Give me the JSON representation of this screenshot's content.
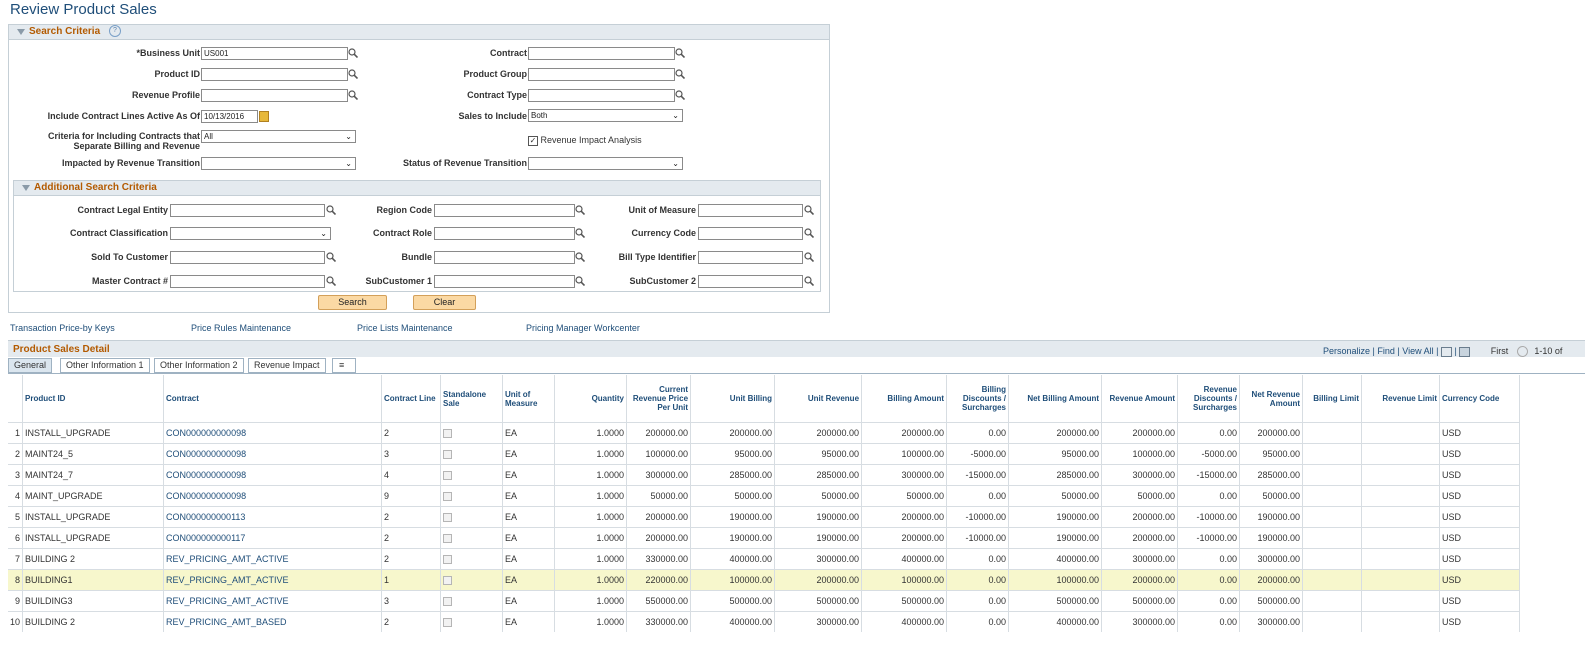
{
  "page": {
    "title": "Review Product Sales"
  },
  "search": {
    "header": "Search Criteria",
    "help_icon": "?",
    "business_unit_label": "*Business Unit",
    "business_unit_value": "US001",
    "product_id_label": "Product ID",
    "revenue_profile_label": "Revenue Profile",
    "active_as_of_label": "Include Contract Lines Active As Of",
    "active_as_of_value": "10/13/2016",
    "criteria_label_1": "Criteria for Including Contracts that",
    "criteria_label_2": "Separate Billing and Revenue",
    "criteria_value": "All",
    "impacted_label": "Impacted by Revenue Transition",
    "impacted_value": "",
    "contract_label": "Contract",
    "product_group_label": "Product Group",
    "contract_type_label": "Contract Type",
    "sales_include_label": "Sales to Include",
    "sales_include_value": "Both",
    "revenue_impact_label": "Revenue Impact Analysis",
    "revenue_impact_checked": true,
    "status_label": "Status of Revenue Transition",
    "status_value": ""
  },
  "additional": {
    "header": "Additional Search Criteria",
    "legal_entity_label": "Contract Legal Entity",
    "classification_label": "Contract Classification",
    "sold_to_label": "Sold To Customer",
    "master_contract_label": "Master Contract #",
    "region_label": "Region Code",
    "contract_role_label": "Contract Role",
    "bundle_label": "Bundle",
    "subcustomer1_label": "SubCustomer 1",
    "uom_label": "Unit of Measure",
    "currency_label": "Currency Code",
    "bill_type_label": "Bill Type Identifier",
    "subcustomer2_label": "SubCustomer 2"
  },
  "buttons": {
    "search": "Search",
    "clear": "Clear"
  },
  "links": {
    "price_by_keys": "Transaction Price-by Keys",
    "price_rules": "Price Rules Maintenance",
    "price_lists": "Price Lists Maintenance",
    "pricing_manager": "Pricing Manager Workcenter"
  },
  "grid": {
    "title": "Product Sales Detail",
    "personalize": "Personalize",
    "find": "Find",
    "view_all": "View All",
    "first": "First",
    "range": "1-10 of",
    "tabs": [
      "General",
      "Other Information 1",
      "Other Information 2",
      "Revenue Impact"
    ],
    "columns": [
      "Product ID",
      "Contract",
      "Contract Line",
      "Standalone Sale",
      "Unit of Measure",
      "Quantity",
      "Current Revenue Price Per Unit",
      "Unit Billing",
      "Unit Revenue",
      "Billing Amount",
      "Billing Discounts / Surcharges",
      "Net Billing Amount",
      "Revenue Amount",
      "Revenue Discounts / Surcharges",
      "Net Revenue Amount",
      "Billing Limit",
      "Revenue Limit",
      "Currency Code"
    ],
    "rows": [
      {
        "n": "1",
        "product": "INSTALL_UPGRADE",
        "contract": "CON000000000098",
        "line": "2",
        "uom": "EA",
        "qty": "1.0000",
        "price": "200000.00",
        "ub": "200000.00",
        "ur": "200000.00",
        "ba": "200000.00",
        "bd": "0.00",
        "nba": "200000.00",
        "ra": "200000.00",
        "rd": "0.00",
        "nra": "200000.00",
        "cur": "USD"
      },
      {
        "n": "2",
        "product": "MAINT24_5",
        "contract": "CON000000000098",
        "line": "3",
        "uom": "EA",
        "qty": "1.0000",
        "price": "100000.00",
        "ub": "95000.00",
        "ur": "95000.00",
        "ba": "100000.00",
        "bd": "-5000.00",
        "nba": "95000.00",
        "ra": "100000.00",
        "rd": "-5000.00",
        "nra": "95000.00",
        "cur": "USD"
      },
      {
        "n": "3",
        "product": "MAINT24_7",
        "contract": "CON000000000098",
        "line": "4",
        "uom": "EA",
        "qty": "1.0000",
        "price": "300000.00",
        "ub": "285000.00",
        "ur": "285000.00",
        "ba": "300000.00",
        "bd": "-15000.00",
        "nba": "285000.00",
        "ra": "300000.00",
        "rd": "-15000.00",
        "nra": "285000.00",
        "cur": "USD"
      },
      {
        "n": "4",
        "product": "MAINT_UPGRADE",
        "contract": "CON000000000098",
        "line": "9",
        "uom": "EA",
        "qty": "1.0000",
        "price": "50000.00",
        "ub": "50000.00",
        "ur": "50000.00",
        "ba": "50000.00",
        "bd": "0.00",
        "nba": "50000.00",
        "ra": "50000.00",
        "rd": "0.00",
        "nra": "50000.00",
        "cur": "USD"
      },
      {
        "n": "5",
        "product": "INSTALL_UPGRADE",
        "contract": "CON000000000113",
        "line": "2",
        "uom": "EA",
        "qty": "1.0000",
        "price": "200000.00",
        "ub": "190000.00",
        "ur": "190000.00",
        "ba": "200000.00",
        "bd": "-10000.00",
        "nba": "190000.00",
        "ra": "200000.00",
        "rd": "-10000.00",
        "nra": "190000.00",
        "cur": "USD"
      },
      {
        "n": "6",
        "product": "INSTALL_UPGRADE",
        "contract": "CON000000000117",
        "line": "2",
        "uom": "EA",
        "qty": "1.0000",
        "price": "200000.00",
        "ub": "190000.00",
        "ur": "190000.00",
        "ba": "200000.00",
        "bd": "-10000.00",
        "nba": "190000.00",
        "ra": "200000.00",
        "rd": "-10000.00",
        "nra": "190000.00",
        "cur": "USD"
      },
      {
        "n": "7",
        "product": "BUILDING 2",
        "contract": "REV_PRICING_AMT_ACTIVE",
        "line": "2",
        "uom": "EA",
        "qty": "1.0000",
        "price": "330000.00",
        "ub": "400000.00",
        "ur": "300000.00",
        "ba": "400000.00",
        "bd": "0.00",
        "nba": "400000.00",
        "ra": "300000.00",
        "rd": "0.00",
        "nra": "300000.00",
        "cur": "USD"
      },
      {
        "n": "8",
        "product": "BUILDING1",
        "contract": "REV_PRICING_AMT_ACTIVE",
        "line": "1",
        "uom": "EA",
        "qty": "1.0000",
        "price": "220000.00",
        "ub": "100000.00",
        "ur": "200000.00",
        "ba": "100000.00",
        "bd": "0.00",
        "nba": "100000.00",
        "ra": "200000.00",
        "rd": "0.00",
        "nra": "200000.00",
        "cur": "USD"
      },
      {
        "n": "9",
        "product": "BUILDING3",
        "contract": "REV_PRICING_AMT_ACTIVE",
        "line": "3",
        "uom": "EA",
        "qty": "1.0000",
        "price": "550000.00",
        "ub": "500000.00",
        "ur": "500000.00",
        "ba": "500000.00",
        "bd": "0.00",
        "nba": "500000.00",
        "ra": "500000.00",
        "rd": "0.00",
        "nra": "500000.00",
        "cur": "USD"
      },
      {
        "n": "10",
        "product": "BUILDING 2",
        "contract": "REV_PRICING_AMT_BASED",
        "line": "2",
        "uom": "EA",
        "qty": "1.0000",
        "price": "330000.00",
        "ub": "400000.00",
        "ur": "300000.00",
        "ba": "400000.00",
        "bd": "0.00",
        "nba": "400000.00",
        "ra": "300000.00",
        "rd": "0.00",
        "nra": "300000.00",
        "cur": "USD"
      }
    ]
  }
}
